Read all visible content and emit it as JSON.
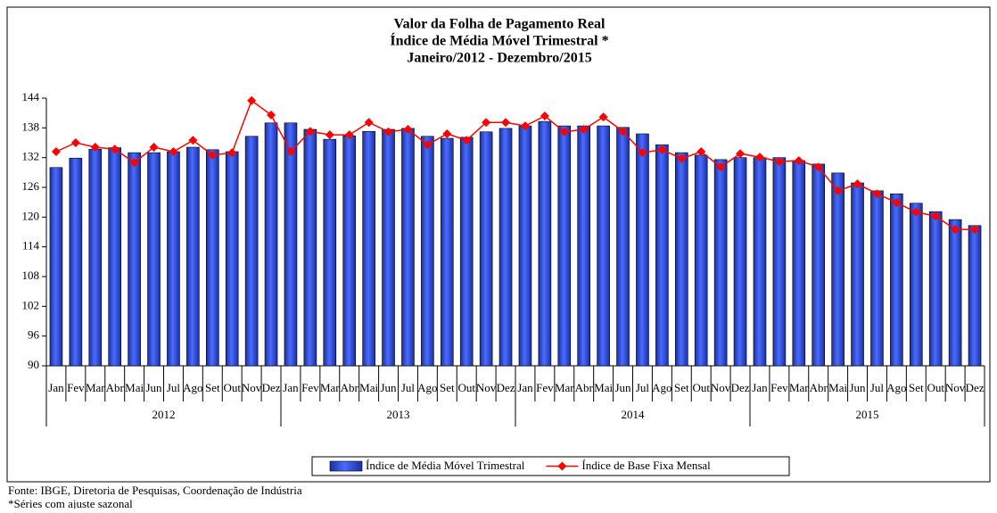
{
  "chart_data": {
    "type": "bar",
    "title": [
      "Valor da Folha de Pagamento Real",
      "Índice de Média Móvel Trimestral *",
      "Janeiro/2012 - Dezembro/2015"
    ],
    "categories": [
      "Jan",
      "Fev",
      "Mar",
      "Abr",
      "Mai",
      "Jun",
      "Jul",
      "Ago",
      "Set",
      "Out",
      "Nov",
      "Dez",
      "Jan",
      "Fev",
      "Mar",
      "Abr",
      "Mai",
      "Jun",
      "Jul",
      "Ago",
      "Set",
      "Out",
      "Nov",
      "Dez",
      "Jan",
      "Fev",
      "Mar",
      "Abr",
      "Mai",
      "Jun",
      "Jul",
      "Ago",
      "Set",
      "Out",
      "Nov",
      "Dez",
      "Jan",
      "Fev",
      "Mar",
      "Abr",
      "Mai",
      "Jun",
      "Jul",
      "Ago",
      "Set",
      "Out",
      "Nov",
      "Dez"
    ],
    "x_groups": [
      "2012",
      "2013",
      "2014",
      "2015"
    ],
    "series": [
      {
        "name": "Índice de Média Móvel Trimestral",
        "type": "bar",
        "color": "#3355e6",
        "values": [
          130.0,
          131.9,
          133.7,
          134.0,
          133.0,
          133.0,
          133.2,
          134.1,
          133.6,
          133.2,
          136.3,
          139.0,
          139.0,
          137.7,
          135.7,
          136.4,
          137.3,
          137.7,
          137.9,
          136.3,
          135.9,
          136.1,
          137.2,
          137.9,
          138.4,
          139.3,
          138.4,
          138.4,
          138.4,
          138.1,
          136.8,
          134.6,
          133.0,
          132.5,
          131.6,
          132.0,
          132.0,
          132.0,
          131.4,
          130.7,
          128.9,
          126.9,
          125.3,
          124.7,
          122.8,
          121.1,
          119.5,
          118.3
        ]
      },
      {
        "name": "Índice de Base Fixa Mensal",
        "type": "line",
        "color": "#ff0000",
        "values": [
          133.2,
          135.0,
          134.1,
          133.7,
          131.0,
          134.1,
          133.2,
          135.5,
          132.5,
          133.0,
          143.5,
          140.6,
          133.2,
          137.3,
          136.6,
          136.6,
          139.1,
          137.2,
          137.7,
          134.6,
          136.8,
          135.5,
          139.1,
          139.1,
          138.4,
          140.4,
          137.2,
          137.7,
          140.2,
          137.3,
          133.0,
          133.6,
          131.8,
          133.2,
          130.1,
          132.8,
          132.1,
          131.2,
          131.4,
          130.1,
          125.3,
          126.7,
          124.7,
          122.9,
          121.0,
          120.2,
          117.5,
          117.5
        ]
      }
    ],
    "ylim": [
      90,
      144
    ],
    "yticks": [
      90,
      96,
      102,
      108,
      114,
      120,
      126,
      132,
      138,
      144
    ],
    "grid": false,
    "notes": [
      "Fonte: IBGE, Diretoria de Pesquisas, Coordenação de Indústria",
      "*Séries com ajuste sazonal"
    ]
  }
}
